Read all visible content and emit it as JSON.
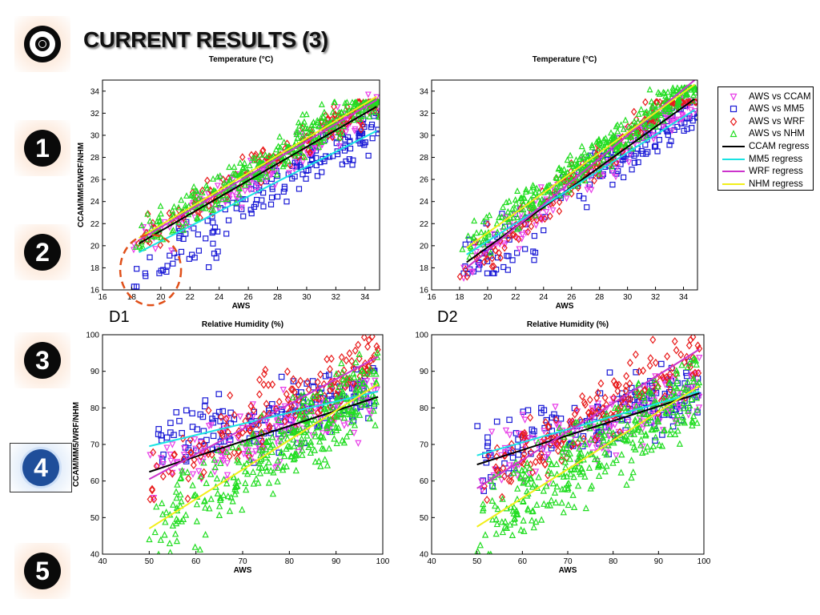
{
  "slide": {
    "title": "CURRENT RESULTS (3)"
  },
  "sidebar": {
    "items": [
      {
        "label": "◎",
        "icon": "target-icon",
        "active": false
      },
      {
        "label": "1",
        "icon": "number-one-icon",
        "active": false
      },
      {
        "label": "2",
        "icon": "number-two-icon",
        "active": false
      },
      {
        "label": "3",
        "icon": "number-three-icon",
        "active": false
      },
      {
        "label": "4",
        "icon": "number-four-icon",
        "active": true
      },
      {
        "label": "5",
        "icon": "number-five-icon",
        "active": false
      }
    ]
  },
  "captions": {
    "d1": "D1",
    "d2": "D2"
  },
  "legend": {
    "items": [
      {
        "label": "AWS vs CCAM",
        "marker": "triangle-down",
        "color": "#e83be8"
      },
      {
        "label": "AWS vs MM5",
        "marker": "square",
        "color": "#1a1ad6"
      },
      {
        "label": "AWS vs WRF",
        "marker": "diamond",
        "color": "#e81a1a"
      },
      {
        "label": "AWS vs NHM",
        "marker": "triangle-up",
        "color": "#22dd22"
      },
      {
        "label": "CCAM regress",
        "marker": "line",
        "color": "#000000"
      },
      {
        "label": "MM5 regress",
        "marker": "line",
        "color": "#19e3e3"
      },
      {
        "label": "WRF regress",
        "marker": "line",
        "color": "#cc33cc"
      },
      {
        "label": "NHM regress",
        "marker": "line",
        "color": "#f2ee1a"
      }
    ]
  },
  "chart_data": [
    {
      "type": "scatter",
      "panel": "D1",
      "title": "Temperature (°C)",
      "xlabel": "AWS",
      "ylabel": "CCAM/MM5/WRF/NHM",
      "xlim": [
        16,
        35
      ],
      "ylim": [
        16,
        35
      ],
      "xticks": [
        "16",
        "18",
        "20",
        "22",
        "24",
        "26",
        "28",
        "30",
        "32",
        "34"
      ],
      "yticks": [
        "16",
        "18",
        "20",
        "22",
        "24",
        "26",
        "28",
        "30",
        "32",
        "34"
      ],
      "annotation": "dashed red ellipse around AWS 18–21, model 16–21",
      "series": [
        {
          "name": "AWS vs CCAM",
          "x_range": [
            18,
            35
          ],
          "y_range": [
            17,
            34
          ]
        },
        {
          "name": "AWS vs MM5",
          "x_range": [
            18,
            35
          ],
          "y_range": [
            16.3,
            32
          ]
        },
        {
          "name": "AWS vs WRF",
          "x_range": [
            18,
            35
          ],
          "y_range": [
            17.5,
            33
          ]
        },
        {
          "name": "AWS vs NHM",
          "x_range": [
            18,
            35
          ],
          "y_range": [
            17,
            33
          ]
        }
      ],
      "regression": [
        {
          "name": "CCAM regress",
          "x": [
            18.5,
            34.8
          ],
          "y": [
            20.2,
            32.6
          ]
        },
        {
          "name": "MM5 regress",
          "x": [
            18.5,
            34.8
          ],
          "y": [
            19.4,
            30.4
          ]
        },
        {
          "name": "WRF regress",
          "x": [
            18.5,
            34.8
          ],
          "y": [
            20.5,
            33.2
          ]
        },
        {
          "name": "NHM regress",
          "x": [
            18.5,
            34.8
          ],
          "y": [
            20.7,
            33.5
          ]
        }
      ]
    },
    {
      "type": "scatter",
      "panel": "D2",
      "title": "Temperature (°C)",
      "xlabel": "AWS",
      "ylabel": "",
      "xlim": [
        16,
        35
      ],
      "ylim": [
        16,
        35
      ],
      "xticks": [
        "16",
        "18",
        "20",
        "22",
        "24",
        "26",
        "28",
        "30",
        "32",
        "34"
      ],
      "yticks": [
        "16",
        "18",
        "20",
        "22",
        "24",
        "26",
        "28",
        "30",
        "32",
        "34"
      ],
      "series": [
        {
          "name": "AWS vs CCAM",
          "x_range": [
            18,
            35
          ],
          "y_range": [
            17,
            34.3
          ]
        },
        {
          "name": "AWS vs MM5",
          "x_range": [
            18,
            35
          ],
          "y_range": [
            17.5,
            33
          ]
        },
        {
          "name": "AWS vs WRF",
          "x_range": [
            18,
            35
          ],
          "y_range": [
            17.2,
            33
          ]
        },
        {
          "name": "AWS vs NHM",
          "x_range": [
            18,
            35
          ],
          "y_range": [
            18,
            34.3
          ]
        }
      ],
      "regression": [
        {
          "name": "CCAM regress",
          "x": [
            18.5,
            34.8
          ],
          "y": [
            18.5,
            33.3
          ]
        },
        {
          "name": "MM5 regress",
          "x": [
            18.5,
            34.8
          ],
          "y": [
            19.2,
            32.3
          ]
        },
        {
          "name": "WRF regress",
          "x": [
            18.5,
            34.8
          ],
          "y": [
            18.0,
            35.0
          ]
        },
        {
          "name": "NHM regress",
          "x": [
            18.5,
            34.8
          ],
          "y": [
            19.8,
            34.6
          ]
        }
      ]
    },
    {
      "type": "scatter",
      "panel": "D1",
      "title": "Relative Humidity (%)",
      "xlabel": "AWS",
      "ylabel": "CCAM/MM5/WRF/NHM",
      "xlim": [
        40,
        100
      ],
      "ylim": [
        40,
        100
      ],
      "xticks": [
        "40",
        "50",
        "60",
        "70",
        "80",
        "90",
        "100"
      ],
      "yticks": [
        "40",
        "50",
        "60",
        "70",
        "80",
        "90",
        "100"
      ],
      "series": [
        {
          "name": "AWS vs CCAM",
          "x_range": [
            50,
            99
          ],
          "y_range": [
            42,
            100
          ]
        },
        {
          "name": "AWS vs MM5",
          "x_range": [
            50,
            99
          ],
          "y_range": [
            55,
            100
          ]
        },
        {
          "name": "AWS vs WRF",
          "x_range": [
            50,
            99
          ],
          "y_range": [
            55,
            100
          ]
        },
        {
          "name": "AWS vs NHM",
          "x_range": [
            50,
            99
          ],
          "y_range": [
            40,
            100
          ]
        }
      ],
      "regression": [
        {
          "name": "CCAM regress",
          "x": [
            50,
            99
          ],
          "y": [
            62.5,
            83
          ]
        },
        {
          "name": "MM5 regress",
          "x": [
            50,
            99
          ],
          "y": [
            69.5,
            84.5
          ]
        },
        {
          "name": "WRF regress",
          "x": [
            50,
            99
          ],
          "y": [
            60.5,
            94
          ]
        },
        {
          "name": "NHM regress",
          "x": [
            50,
            99
          ],
          "y": [
            47,
            86.5
          ]
        }
      ]
    },
    {
      "type": "scatter",
      "panel": "D2",
      "title": "Relative Humidity (%)",
      "xlabel": "AWS",
      "ylabel": "",
      "xlim": [
        40,
        100
      ],
      "ylim": [
        40,
        100
      ],
      "xticks": [
        "40",
        "50",
        "60",
        "70",
        "80",
        "90",
        "100"
      ],
      "yticks": [
        "40",
        "50",
        "60",
        "70",
        "80",
        "90",
        "100"
      ],
      "series": [
        {
          "name": "AWS vs CCAM",
          "x_range": [
            50,
            99
          ],
          "y_range": [
            41,
            100
          ]
        },
        {
          "name": "AWS vs MM5",
          "x_range": [
            50,
            99
          ],
          "y_range": [
            55,
            100
          ]
        },
        {
          "name": "AWS vs WRF",
          "x_range": [
            50,
            99
          ],
          "y_range": [
            48,
            100
          ]
        },
        {
          "name": "AWS vs NHM",
          "x_range": [
            50,
            99
          ],
          "y_range": [
            40,
            100
          ]
        }
      ],
      "regression": [
        {
          "name": "CCAM regress",
          "x": [
            50,
            99
          ],
          "y": [
            64.5,
            84
          ]
        },
        {
          "name": "MM5 regress",
          "x": [
            50,
            99
          ],
          "y": [
            67,
            84.5
          ]
        },
        {
          "name": "WRF regress",
          "x": [
            50,
            99
          ],
          "y": [
            58,
            96
          ]
        },
        {
          "name": "NHM regress",
          "x": [
            50,
            99
          ],
          "y": [
            47.5,
            86
          ]
        }
      ]
    }
  ]
}
